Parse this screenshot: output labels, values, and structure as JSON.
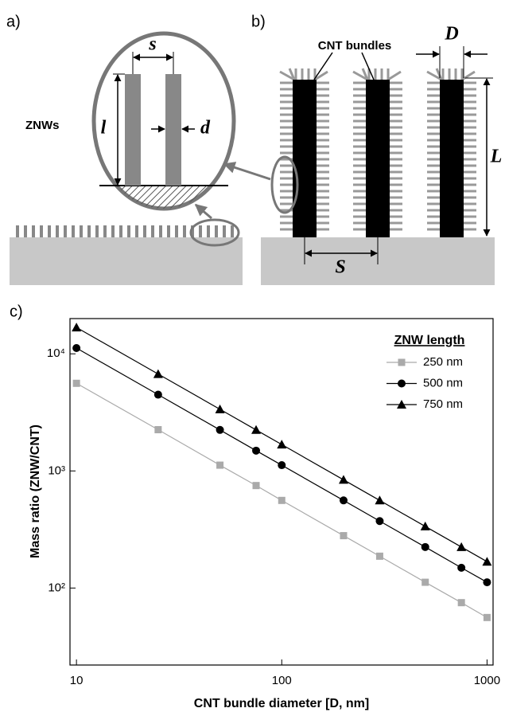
{
  "diagram": {
    "a": "a)",
    "b": "b)",
    "c": "c)",
    "znws": "ZNWs",
    "s": "s",
    "l": "l",
    "d": "d",
    "cnt_bundles": "CNT bundles",
    "D": "D",
    "L": "L",
    "S": "S"
  },
  "chart_data": {
    "type": "line",
    "x_label": "CNT bundle diameter [D, nm]",
    "y_label": "Mass ratio (ZNW/CNT)",
    "x": [
      10,
      25,
      50,
      75,
      100,
      200,
      300,
      500,
      750,
      1000
    ],
    "series": [
      {
        "name": "250 nm",
        "color": "#aaaaaa",
        "marker": "square",
        "values": [
          5600,
          2250,
          1120,
          750,
          560,
          280,
          187,
          112,
          75,
          56
        ]
      },
      {
        "name": "500 nm",
        "color": "#000000",
        "marker": "circle",
        "values": [
          11200,
          4480,
          2240,
          1490,
          1120,
          560,
          373,
          224,
          149,
          112
        ]
      },
      {
        "name": "750 nm",
        "color": "#000000",
        "marker": "triangle",
        "values": [
          16800,
          6720,
          3360,
          2240,
          1680,
          840,
          560,
          336,
          224,
          168
        ]
      }
    ],
    "legend_title": "ZNW length",
    "legend": "upper right",
    "x_log": true,
    "y_log": true,
    "xlim": [
      9.3,
      1070
    ],
    "ylim": [
      22,
      20000
    ],
    "xticks": [
      10,
      100,
      1000
    ],
    "yticks": [
      {
        "value": 100,
        "label": "10²"
      },
      {
        "value": 1000,
        "label": "10³"
      },
      {
        "value": 10000,
        "label": "10⁴"
      }
    ]
  }
}
